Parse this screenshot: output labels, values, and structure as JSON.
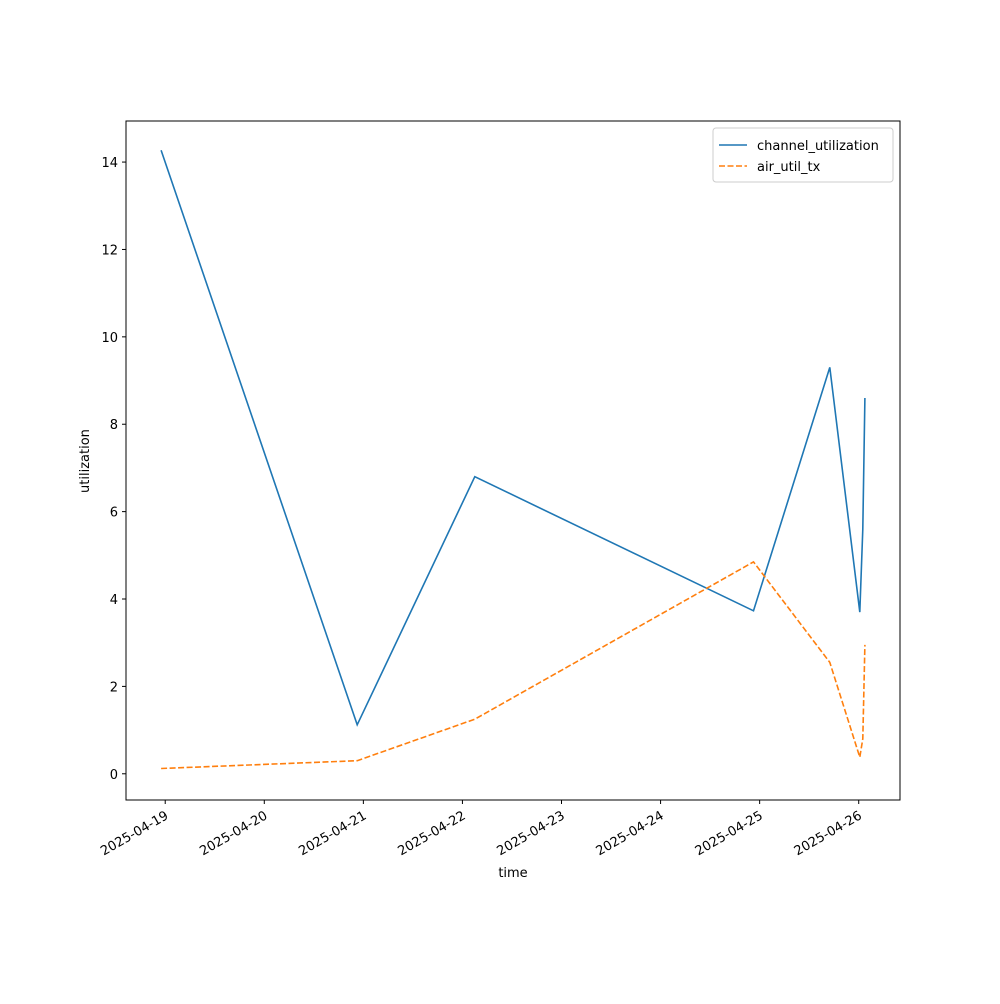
{
  "chart_data": {
    "type": "line",
    "x_label": "time",
    "y_label": "utilization",
    "x": [
      "2025-04-18T23:00",
      "2025-04-20T22:30",
      "2025-04-22T03:00",
      "2025-04-24T22:30",
      "2025-04-25T17:00",
      "2025-04-26T00:15",
      "2025-04-26T01:00",
      "2025-04-26T01:30"
    ],
    "series": [
      {
        "name": "channel_utilization",
        "color": "#1f77b4",
        "dash": "solid",
        "values": [
          14.27,
          1.12,
          6.8,
          3.73,
          9.3,
          3.7,
          5.6,
          8.6
        ]
      },
      {
        "name": "air_util_tx",
        "color": "#ff7f0e",
        "dash": "dashed",
        "values": [
          0.12,
          0.3,
          1.25,
          4.85,
          2.55,
          0.38,
          0.8,
          2.95
        ]
      }
    ],
    "xlim": [
      "2025-04-18T14:30",
      "2025-04-26T10:00"
    ],
    "xticks": [
      "2025-04-19",
      "2025-04-20",
      "2025-04-21",
      "2025-04-22",
      "2025-04-23",
      "2025-04-24",
      "2025-04-25",
      "2025-04-26"
    ],
    "ylim": [
      -0.6,
      14.94
    ],
    "yticks": [
      0,
      2,
      4,
      6,
      8,
      10,
      12,
      14
    ],
    "legend": "upper right",
    "grid": false
  }
}
